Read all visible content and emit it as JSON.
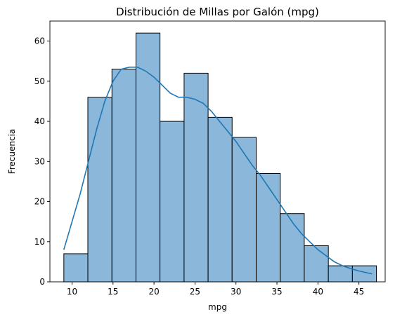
{
  "chart_data": {
    "type": "bar",
    "subtype": "histogram-with-kde",
    "title": "Distribución de Millas por Galón (mpg)",
    "xlabel": "mpg",
    "ylabel": "Frecuencia",
    "xlim": [
      7.3,
      48.2
    ],
    "ylim": [
      0,
      65
    ],
    "xticks": [
      10,
      15,
      20,
      25,
      30,
      35,
      40,
      45
    ],
    "yticks": [
      0,
      10,
      20,
      30,
      40,
      50,
      60
    ],
    "bin_edges": [
      9.0,
      11.93,
      14.87,
      17.8,
      20.73,
      23.67,
      26.6,
      29.53,
      32.47,
      35.4,
      38.33,
      41.27,
      44.2,
      47.13
    ],
    "values": [
      7,
      46,
      53,
      62,
      40,
      52,
      41,
      36,
      27,
      17,
      9,
      4,
      4
    ],
    "kde": {
      "x": [
        9,
        10,
        11,
        12,
        13,
        14,
        15,
        16,
        17,
        18,
        19,
        20,
        21,
        22,
        23,
        24,
        25,
        26,
        27,
        28,
        29,
        30,
        31,
        32,
        33,
        34,
        35,
        36,
        37,
        38,
        39,
        40,
        41,
        42,
        43,
        44,
        45,
        46.6
      ],
      "y": [
        8,
        15,
        22,
        30,
        38,
        45,
        50,
        53,
        53.5,
        53.5,
        52.5,
        51,
        49,
        47,
        46,
        46,
        45.5,
        44.5,
        42.5,
        40,
        37.5,
        35,
        32,
        29,
        26.5,
        23.5,
        20.5,
        17.5,
        14.5,
        12,
        10,
        8,
        6.5,
        5,
        4,
        3.3,
        2.7,
        2
      ]
    },
    "colors": {
      "bar_fill": "#8bb8da",
      "bar_edge": "#000000",
      "kde_line": "#1f77b4"
    },
    "grid": false,
    "legend": "none"
  }
}
